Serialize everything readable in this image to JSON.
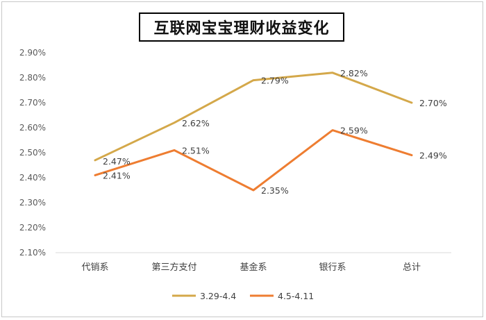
{
  "chart_data": {
    "type": "line",
    "title": "互联网宝宝理财收益变化",
    "categories": [
      "代销系",
      "第三方支付",
      "基金系",
      "银行系",
      "总计"
    ],
    "ylim": [
      2.1,
      2.9
    ],
    "yticks": [
      "2.10%",
      "2.20%",
      "2.30%",
      "2.40%",
      "2.50%",
      "2.60%",
      "2.70%",
      "2.80%",
      "2.90%"
    ],
    "series": [
      {
        "name": "3.29-4.4",
        "color": "#D4A84A",
        "values": [
          2.47,
          2.62,
          2.79,
          2.82,
          2.7
        ],
        "labels": [
          "2.47%",
          "2.62%",
          "2.79%",
          "2.82%",
          "2.70%"
        ]
      },
      {
        "name": "4.5-4.11",
        "color": "#EE7D31",
        "values": [
          2.41,
          2.51,
          2.35,
          2.59,
          2.49
        ],
        "labels": [
          "2.41%",
          "2.51%",
          "2.35%",
          "2.59%",
          "2.49%"
        ]
      }
    ],
    "grid": false,
    "legend_position": "bottom"
  }
}
